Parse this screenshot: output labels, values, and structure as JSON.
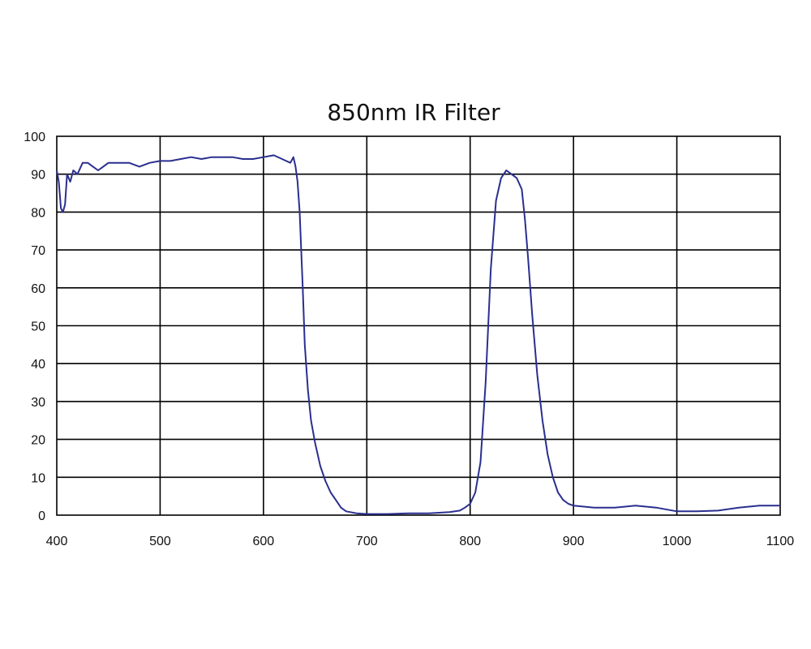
{
  "chart_data": {
    "type": "line",
    "title": "850nm IR Filter",
    "xlabel": "",
    "ylabel": "",
    "xlim": [
      400,
      1100
    ],
    "ylim": [
      0,
      100
    ],
    "x_ticks": [
      400,
      500,
      600,
      700,
      800,
      900,
      1000,
      1100
    ],
    "y_ticks": [
      0,
      10,
      20,
      30,
      40,
      50,
      60,
      70,
      80,
      90,
      100
    ],
    "grid": true,
    "legend": "none",
    "colors": {
      "series": "#2a2f8f",
      "grid": "#000000"
    },
    "series": [
      {
        "points": [
          [
            400,
            91
          ],
          [
            402,
            88
          ],
          [
            404,
            81
          ],
          [
            406,
            80
          ],
          [
            408,
            82
          ],
          [
            410,
            90
          ],
          [
            413,
            88
          ],
          [
            416,
            91
          ],
          [
            420,
            90
          ],
          [
            425,
            93
          ],
          [
            430,
            93
          ],
          [
            435,
            92
          ],
          [
            440,
            91
          ],
          [
            445,
            92
          ],
          [
            450,
            93
          ],
          [
            460,
            93
          ],
          [
            470,
            93
          ],
          [
            480,
            92
          ],
          [
            490,
            93
          ],
          [
            500,
            93.5
          ],
          [
            510,
            93.5
          ],
          [
            520,
            94
          ],
          [
            530,
            94.5
          ],
          [
            540,
            94
          ],
          [
            550,
            94.5
          ],
          [
            560,
            94.5
          ],
          [
            570,
            94.5
          ],
          [
            580,
            94
          ],
          [
            590,
            94
          ],
          [
            600,
            94.5
          ],
          [
            610,
            95
          ],
          [
            618,
            94
          ],
          [
            622,
            93.5
          ],
          [
            626,
            93
          ],
          [
            629,
            94.5
          ],
          [
            631,
            92
          ],
          [
            633,
            88
          ],
          [
            635,
            80
          ],
          [
            638,
            60
          ],
          [
            640,
            45
          ],
          [
            643,
            33
          ],
          [
            646,
            25
          ],
          [
            650,
            19
          ],
          [
            655,
            13
          ],
          [
            660,
            9
          ],
          [
            665,
            6
          ],
          [
            670,
            4
          ],
          [
            675,
            2
          ],
          [
            680,
            1
          ],
          [
            690,
            0.5
          ],
          [
            700,
            0.3
          ],
          [
            720,
            0.3
          ],
          [
            740,
            0.5
          ],
          [
            760,
            0.5
          ],
          [
            780,
            0.8
          ],
          [
            790,
            1.2
          ],
          [
            795,
            2
          ],
          [
            800,
            3
          ],
          [
            805,
            6
          ],
          [
            810,
            14
          ],
          [
            815,
            35
          ],
          [
            820,
            65
          ],
          [
            825,
            83
          ],
          [
            830,
            89
          ],
          [
            835,
            91
          ],
          [
            840,
            90
          ],
          [
            845,
            89
          ],
          [
            850,
            86
          ],
          [
            853,
            78
          ],
          [
            856,
            68
          ],
          [
            860,
            53
          ],
          [
            865,
            37
          ],
          [
            870,
            25
          ],
          [
            875,
            16
          ],
          [
            880,
            10
          ],
          [
            885,
            6
          ],
          [
            890,
            4
          ],
          [
            895,
            3
          ],
          [
            900,
            2.5
          ],
          [
            920,
            2
          ],
          [
            940,
            2
          ],
          [
            960,
            2.5
          ],
          [
            980,
            2
          ],
          [
            1000,
            1
          ],
          [
            1020,
            1
          ],
          [
            1040,
            1.2
          ],
          [
            1060,
            2
          ],
          [
            1080,
            2.5
          ],
          [
            1100,
            2.5
          ]
        ]
      }
    ]
  }
}
